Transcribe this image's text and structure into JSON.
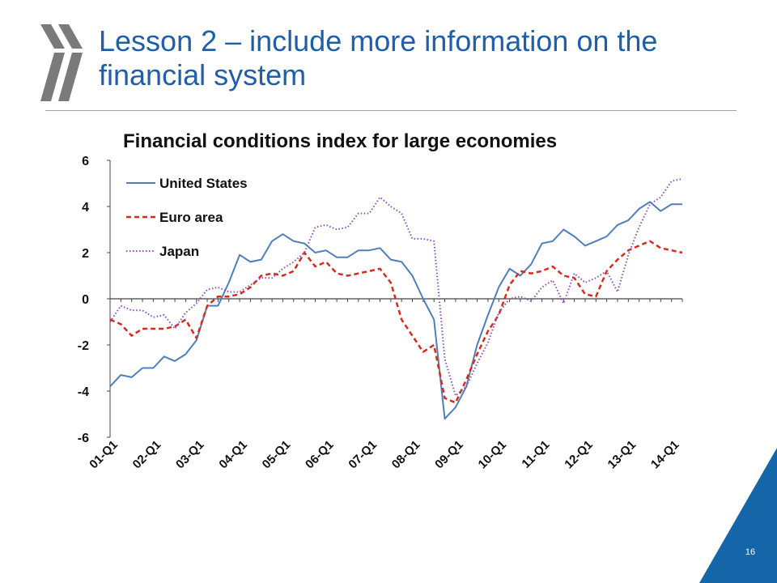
{
  "slide": {
    "title": "Lesson 2 – include more information on the financial system",
    "page_number": "16"
  },
  "colors": {
    "title": "#1f5fa8",
    "logo": "#7a7a7a",
    "corner": "#1466a8",
    "us": "#4f7fb8",
    "euro": "#d62b1f",
    "japan": "#8a4fb5"
  },
  "chart_data": {
    "type": "line",
    "title": "Financial conditions index for large economies",
    "xlabel": "",
    "ylabel": "",
    "ylim": [
      -6,
      6
    ],
    "yticks": [
      "6",
      "4",
      "2",
      "0",
      "-2",
      "-4",
      "-6"
    ],
    "grid": false,
    "legend": "top-left",
    "categories": [
      "01-Q1",
      "01-Q2",
      "01-Q3",
      "01-Q4",
      "02-Q1",
      "02-Q2",
      "02-Q3",
      "02-Q4",
      "03-Q1",
      "03-Q2",
      "03-Q3",
      "03-Q4",
      "04-Q1",
      "04-Q2",
      "04-Q3",
      "04-Q4",
      "05-Q1",
      "05-Q2",
      "05-Q3",
      "05-Q4",
      "06-Q1",
      "06-Q2",
      "06-Q3",
      "06-Q4",
      "07-Q1",
      "07-Q2",
      "07-Q3",
      "07-Q4",
      "08-Q1",
      "08-Q2",
      "08-Q3",
      "08-Q4",
      "09-Q1",
      "09-Q2",
      "09-Q3",
      "09-Q4",
      "10-Q1",
      "10-Q2",
      "10-Q3",
      "10-Q4",
      "11-Q1",
      "11-Q2",
      "11-Q3",
      "11-Q4",
      "12-Q1",
      "12-Q2",
      "12-Q3",
      "12-Q4",
      "13-Q1",
      "13-Q2",
      "13-Q3",
      "13-Q4",
      "14-Q1",
      "14-Q2"
    ],
    "x_tick_labels": [
      "01-Q1",
      "02-Q1",
      "03-Q1",
      "04-Q1",
      "05-Q1",
      "06-Q1",
      "07-Q1",
      "08-Q1",
      "09-Q1",
      "10-Q1",
      "11-Q1",
      "12-Q1",
      "13-Q1",
      "14-Q1"
    ],
    "series": [
      {
        "name": "United States",
        "style": "solid",
        "values": [
          -3.8,
          -3.3,
          -3.4,
          -3.0,
          -3.0,
          -2.5,
          -2.7,
          -2.4,
          -1.8,
          -0.3,
          -0.3,
          0.7,
          1.9,
          1.6,
          1.7,
          2.5,
          2.8,
          2.5,
          2.4,
          2.0,
          2.1,
          1.8,
          1.8,
          2.1,
          2.1,
          2.2,
          1.7,
          1.6,
          1.0,
          0.0,
          -0.9,
          -5.2,
          -4.7,
          -3.8,
          -2.0,
          -0.7,
          0.5,
          1.3,
          1.0,
          1.5,
          2.4,
          2.5,
          3.0,
          2.7,
          2.3,
          2.5,
          2.7,
          3.2,
          3.4,
          3.9,
          4.2,
          3.8,
          4.1,
          4.1
        ]
      },
      {
        "name": "Euro area",
        "style": "dashed",
        "values": [
          -0.9,
          -1.1,
          -1.6,
          -1.3,
          -1.3,
          -1.3,
          -1.2,
          -0.9,
          -1.7,
          -0.3,
          0.1,
          0.1,
          0.2,
          0.5,
          1.0,
          1.1,
          1.0,
          1.2,
          2.0,
          1.4,
          1.6,
          1.1,
          1.0,
          1.1,
          1.2,
          1.3,
          0.7,
          -0.9,
          -1.6,
          -2.3,
          -2.0,
          -4.3,
          -4.5,
          -3.5,
          -2.4,
          -1.4,
          -0.7,
          0.6,
          1.2,
          1.1,
          1.2,
          1.4,
          1.0,
          0.9,
          0.2,
          0.1,
          1.2,
          1.7,
          2.1,
          2.3,
          2.5,
          2.2,
          2.1,
          2.0
        ]
      },
      {
        "name": "Japan",
        "style": "dotted",
        "values": [
          -1.0,
          -0.3,
          -0.5,
          -0.5,
          -0.8,
          -0.7,
          -1.3,
          -0.6,
          -0.2,
          0.4,
          0.5,
          0.3,
          0.3,
          0.6,
          0.9,
          0.9,
          1.3,
          1.6,
          2.0,
          3.1,
          3.2,
          3.0,
          3.1,
          3.7,
          3.7,
          4.4,
          4.0,
          3.7,
          2.6,
          2.6,
          2.5,
          -2.6,
          -4.2,
          -3.8,
          -2.8,
          -1.9,
          -0.6,
          0.0,
          0.1,
          -0.1,
          0.5,
          0.8,
          -0.2,
          1.1,
          0.7,
          0.9,
          1.2,
          0.3,
          1.9,
          3.1,
          4.1,
          4.4,
          5.1,
          5.2
        ]
      }
    ]
  }
}
